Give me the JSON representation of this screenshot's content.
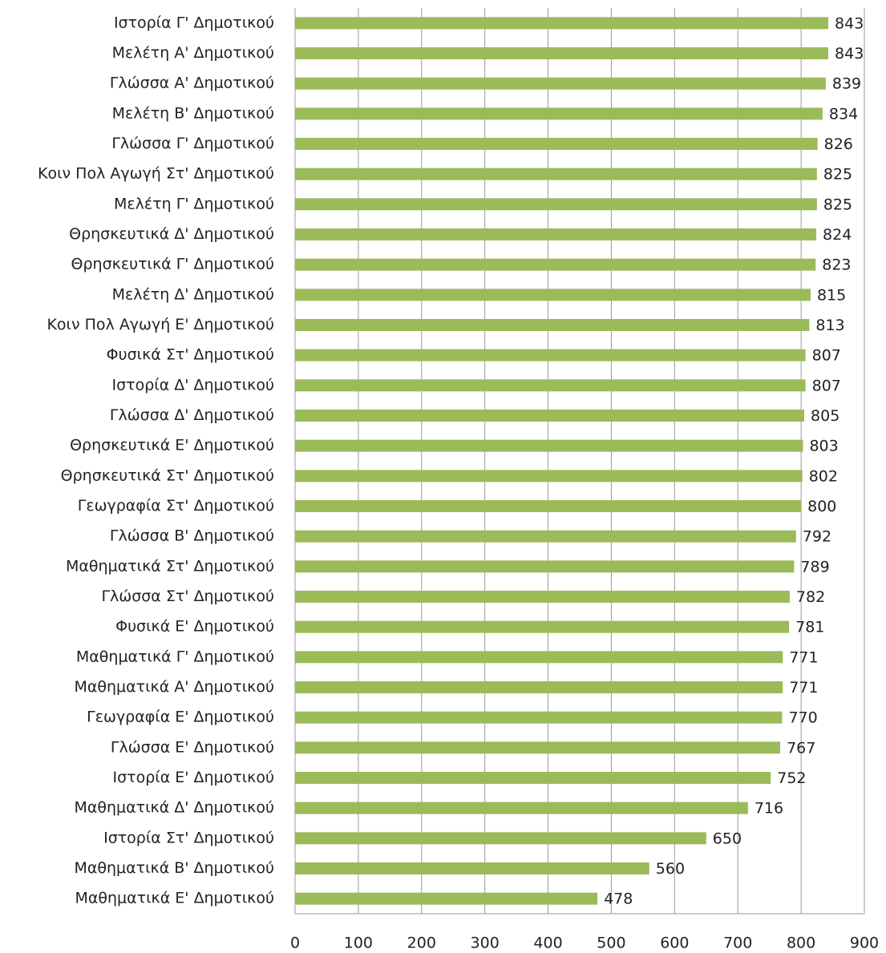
{
  "chart_data": {
    "type": "barh",
    "categories": [
      "Ιστορία Γ' Δημοτικού",
      "Μελέτη Α' Δημοτικού",
      "Γλώσσα Α' Δημοτικού",
      "Μελέτη Β' Δημοτικού",
      "Γλώσσα Γ' Δημοτικού",
      "Κοιν Πολ Αγωγή Στ' Δημοτικού",
      "Μελέτη Γ' Δημοτικού",
      "Θρησκευτικά Δ' Δημοτικού",
      "Θρησκευτικά Γ' Δημοτικού",
      "Μελέτη Δ' Δημοτικού",
      "Κοιν Πολ Αγωγή Ε' Δημοτικού",
      "Φυσικά Στ' Δημοτικού",
      "Ιστορία Δ' Δημοτικού",
      "Γλώσσα Δ' Δημοτικού",
      "Θρησκευτικά Ε' Δημοτικού",
      "Θρησκευτικά Στ' Δημοτικού",
      "Γεωγραφία Στ' Δημοτικού",
      "Γλώσσα Β' Δημοτικού",
      "Μαθηματικά Στ' Δημοτικού",
      "Γλώσσα Στ' Δημοτικού",
      "Φυσικά Ε' Δημοτικού",
      "Μαθηματικά Γ' Δημοτικού",
      "Μαθηματικά Α' Δημοτικού",
      "Γεωγραφία Ε' Δημοτικού",
      "Γλώσσα Ε' Δημοτικού",
      "Ιστορία Ε' Δημοτικού",
      "Μαθηματικά Δ' Δημοτικού",
      "Ιστορία Στ' Δημοτικού",
      "Μαθηματικά Β' Δημοτικού",
      "Μαθηματικά Ε' Δημοτικού"
    ],
    "values": [
      843,
      843,
      839,
      834,
      826,
      825,
      825,
      824,
      823,
      815,
      813,
      807,
      807,
      805,
      803,
      802,
      800,
      792,
      789,
      782,
      781,
      771,
      771,
      770,
      767,
      752,
      716,
      650,
      560,
      478
    ],
    "color": "#9bbb59",
    "xlim": [
      0,
      900
    ],
    "xticks": [
      0,
      100,
      200,
      300,
      400,
      500,
      600,
      700,
      800,
      900
    ],
    "grid": true
  }
}
